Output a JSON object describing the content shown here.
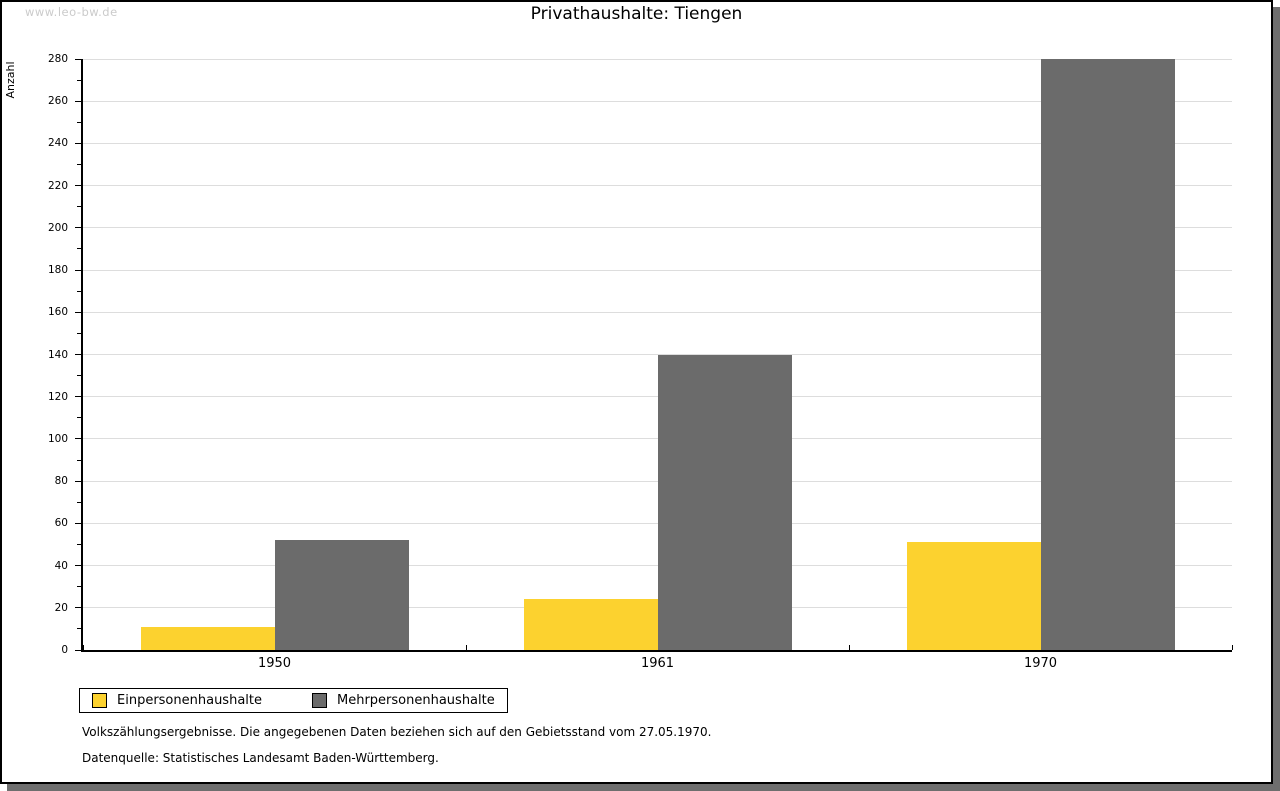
{
  "watermark": "www.leo-bw.de",
  "chart_data": {
    "type": "bar",
    "title": "Privathaushalte: Tiengen",
    "ylabel": "Anzahl",
    "xlabel": "",
    "categories": [
      "1950",
      "1961",
      "1970"
    ],
    "series": [
      {
        "name": "Einpersonenhaushalte",
        "values": [
          11,
          24,
          51
        ],
        "color": "#FCD22F"
      },
      {
        "name": "Mehrpersonenhaushalte",
        "values": [
          52,
          140,
          280
        ],
        "color": "#6B6B6B"
      }
    ],
    "ylim": [
      0,
      280
    ],
    "ytick_step": 20,
    "yminor_step": 10,
    "grid": true,
    "gridline_color": "#DDDDDD",
    "legend_position": "bottom-left"
  },
  "footer": {
    "note": "Volkszählungsergebnisse. Die angegebenen Daten beziehen sich auf den Gebietsstand vom 27.05.1970.",
    "source": "Datenquelle: Statistisches Landesamt Baden-Württemberg."
  }
}
